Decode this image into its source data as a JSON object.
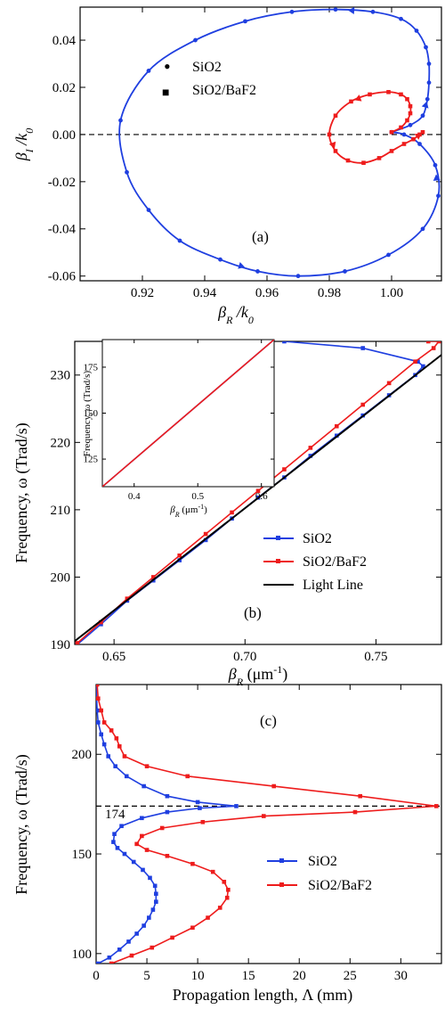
{
  "chart_data": [
    {
      "type": "line",
      "panel_label": "(a)",
      "xlabel_main": "β",
      "xlabel_sub": "R",
      "xlabel_tail": " /k",
      "xlabel_tail_sub": "0",
      "ylabel_main": "β",
      "ylabel_sub": "I",
      "ylabel_tail": " /k",
      "ylabel_tail_sub": "0",
      "xlim": [
        0.9,
        1.016
      ],
      "ylim": [
        -0.062,
        0.054
      ],
      "xticks": [
        "0.92",
        "0.94",
        "0.96",
        "0.98",
        "1.00"
      ],
      "xtick_values": [
        0.92,
        0.94,
        0.96,
        0.98,
        1.0
      ],
      "yticks": [
        "-0.06",
        "-0.04",
        "-0.02",
        "0.00",
        "0.02",
        "0.04"
      ],
      "ytick_values": [
        -0.06,
        -0.04,
        -0.02,
        0.0,
        0.02,
        0.04
      ],
      "reference_line": {
        "y": 0.0,
        "style": "dashed"
      },
      "legend_position": "upper-left",
      "series": [
        {
          "name": "SiO2",
          "color": "#1f3fe0",
          "marker": "circle",
          "legend_symbol": "•",
          "x": [
            1.0,
            1.006,
            1.01,
            1.0115,
            1.012,
            1.012,
            1.011,
            1.008,
            1.003,
            0.994,
            0.982,
            0.968,
            0.953,
            0.937,
            0.922,
            0.913,
            0.915,
            0.922,
            0.932,
            0.945,
            0.957,
            0.97,
            0.985,
            0.999,
            1.01,
            1.015,
            1.014,
            1.009,
            1.004,
            1.0
          ],
          "y": [
            0.001,
            0.004,
            0.008,
            0.015,
            0.022,
            0.03,
            0.037,
            0.044,
            0.049,
            0.052,
            0.053,
            0.052,
            0.048,
            0.04,
            0.027,
            0.006,
            -0.016,
            -0.032,
            -0.045,
            -0.053,
            -0.058,
            -0.06,
            -0.058,
            -0.051,
            -0.04,
            -0.026,
            -0.013,
            -0.004,
            0.0,
            0.001
          ]
        },
        {
          "name": "SiO2/BaF2",
          "color": "#ee1c1c",
          "marker": "square",
          "legend_symbol": "■",
          "x": [
            1.0,
            1.003,
            1.005,
            1.006,
            1.006,
            1.005,
            1.003,
            0.999,
            0.993,
            0.987,
            0.982,
            0.98,
            0.982,
            0.986,
            0.991,
            0.996,
            1.0,
            1.004,
            1.007,
            1.009,
            1.01
          ],
          "y": [
            0.001,
            0.003,
            0.006,
            0.009,
            0.012,
            0.015,
            0.017,
            0.018,
            0.017,
            0.014,
            0.008,
            0.0,
            -0.007,
            -0.011,
            -0.012,
            -0.01,
            -0.007,
            -0.004,
            -0.002,
            0.0,
            0.001
          ]
        }
      ]
    },
    {
      "type": "line",
      "panel_label": "(b)",
      "xlabel_main": "β",
      "xlabel_sub": "R",
      "xlabel_tail": " (μm",
      "xlabel_sup": "-1",
      "xlabel_close": ")",
      "ylabel": "Frequency, ω (Trad/s)",
      "xlim": [
        0.635,
        0.775
      ],
      "ylim": [
        190,
        235
      ],
      "xticks": [
        "0.65",
        "0.70",
        "0.75"
      ],
      "xtick_values": [
        0.65,
        0.7,
        0.75
      ],
      "yticks": [
        "190",
        "200",
        "210",
        "220",
        "230"
      ],
      "ytick_values": [
        190,
        200,
        210,
        220,
        230
      ],
      "legend_position": "lower-right",
      "series": [
        {
          "name": "SiO2",
          "color": "#1f3fe0",
          "marker": "square",
          "x": [
            0.636,
            0.645,
            0.655,
            0.665,
            0.675,
            0.685,
            0.695,
            0.705,
            0.715,
            0.725,
            0.735,
            0.745,
            0.755,
            0.765,
            0.768,
            0.766,
            0.745,
            0.715
          ],
          "y": [
            190.0,
            193.0,
            196.5,
            199.5,
            202.5,
            205.5,
            208.7,
            211.8,
            214.8,
            218.0,
            221.0,
            224.0,
            227.0,
            230.0,
            231.3,
            232.0,
            234.0,
            235.0
          ]
        },
        {
          "name": "SiO2/BaF2",
          "color": "#ee1c1c",
          "marker": "square",
          "x": [
            0.636,
            0.645,
            0.655,
            0.665,
            0.675,
            0.685,
            0.695,
            0.705,
            0.715,
            0.725,
            0.735,
            0.745,
            0.755,
            0.765,
            0.772,
            0.774,
            0.77
          ],
          "y": [
            190.2,
            193.3,
            196.8,
            200.0,
            203.2,
            206.4,
            209.6,
            212.8,
            216.0,
            219.2,
            222.4,
            225.6,
            228.8,
            232.0,
            234.0,
            235.0,
            235.0
          ]
        },
        {
          "name": "Light Line",
          "color": "#000000",
          "marker": "none",
          "x": [
            0.635,
            0.775
          ],
          "y": [
            190.5,
            233.0
          ]
        }
      ],
      "inset": {
        "xlabel_main": "β",
        "xlabel_sub": "R",
        "xlabel_tail": " (μm",
        "xlabel_sup": "-1",
        "xlabel_close": ")",
        "ylabel": "Frequency, ω (Trad/s)",
        "xlim": [
          0.35,
          0.62
        ],
        "ylim": [
          110,
          190
        ],
        "xticks": [
          "0.4",
          "0.5",
          "0.6"
        ],
        "xtick_values": [
          0.4,
          0.5,
          0.6
        ],
        "yticks": [
          "125",
          "150",
          "175"
        ],
        "ytick_values": [
          125,
          150,
          175
        ],
        "series": [
          {
            "name": "SiO2",
            "color": "#1f3fe0",
            "x": [
              0.35,
              0.62
            ],
            "y": [
              110,
              190
            ]
          },
          {
            "name": "SiO2/BaF2",
            "color": "#ee1c1c",
            "x": [
              0.35,
              0.62
            ],
            "y": [
              110,
              190
            ]
          }
        ]
      }
    },
    {
      "type": "line",
      "panel_label": "(c)",
      "xlabel": "Propagation length, Λ (mm)",
      "ylabel": "Frequency, ω (Trad/s)",
      "xlim": [
        0,
        34
      ],
      "ylim": [
        95,
        235
      ],
      "xticks": [
        "0",
        "5",
        "10",
        "15",
        "20",
        "25",
        "30"
      ],
      "xtick_values": [
        0,
        5,
        10,
        15,
        20,
        25,
        30
      ],
      "yticks": [
        "100",
        "150",
        "200"
      ],
      "ytick_values": [
        100,
        150,
        200
      ],
      "reference_line": {
        "y": 174,
        "style": "dashed",
        "label": "174"
      },
      "legend_position": "lower-right",
      "series": [
        {
          "name": "SiO2",
          "color": "#1f3fe0",
          "marker": "square",
          "x": [
            0.2,
            1.3,
            2.3,
            3.2,
            4.0,
            4.7,
            5.2,
            5.6,
            5.9,
            5.9,
            5.8,
            5.3,
            4.6,
            3.7,
            2.8,
            2.1,
            1.7,
            1.8,
            2.5,
            4.5,
            7.0,
            10.2,
            13.8,
            10.0,
            7.0,
            4.7,
            3.0,
            1.9,
            1.2,
            0.8,
            0.5,
            0.2,
            0.1,
            0.0
          ],
          "y": [
            95,
            98,
            102,
            106,
            110,
            114,
            118,
            122,
            126,
            130,
            134,
            138,
            142,
            146,
            150,
            153,
            156,
            160,
            164,
            168,
            171,
            173,
            174,
            176,
            179,
            184,
            189,
            194,
            199,
            205,
            210,
            216,
            222,
            235
          ]
        },
        {
          "name": "SiO2/BaF2",
          "color": "#ee1c1c",
          "marker": "square",
          "x": [
            1.5,
            3.5,
            5.5,
            7.5,
            9.5,
            11.0,
            12.2,
            12.9,
            13.0,
            12.6,
            11.5,
            9.5,
            7.0,
            5.0,
            4.0,
            4.5,
            6.5,
            10.5,
            16.5,
            25.5,
            33.5,
            26.0,
            17.5,
            9.0,
            5.0,
            2.8,
            2.3,
            2.0,
            1.5,
            0.8,
            0.5,
            0.2,
            0.1
          ],
          "y": [
            95,
            99,
            103,
            108,
            113,
            118,
            123,
            128,
            132,
            136,
            141,
            145,
            149,
            152,
            155,
            159,
            163,
            166,
            169,
            171,
            174,
            179,
            184,
            189,
            194,
            199,
            204,
            208,
            212,
            216,
            222,
            228,
            235
          ]
        }
      ]
    }
  ]
}
